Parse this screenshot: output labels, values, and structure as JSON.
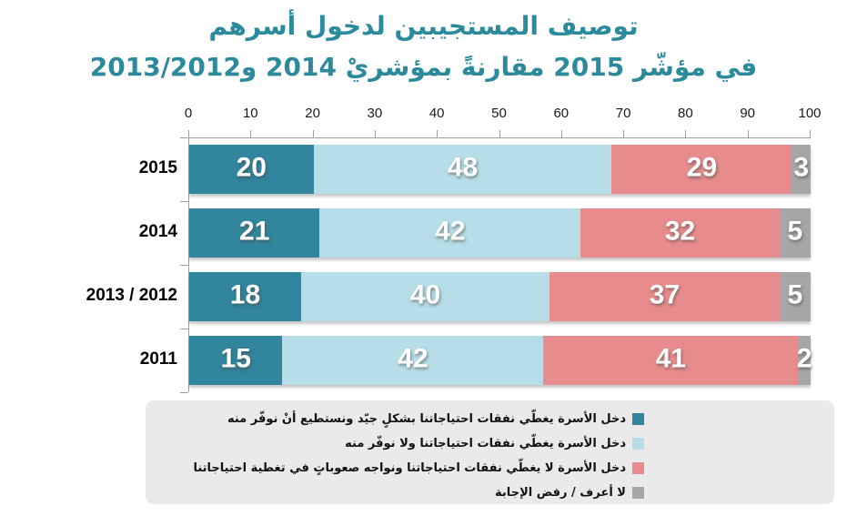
{
  "title": {
    "line1": "توصيف المستجيبين لدخول أسرهم",
    "line2": "في مؤشّر 2015 مقارنةً بمؤشريْ 2014 و2013/2012",
    "color": "#2B8A9B"
  },
  "colors": {
    "axis_line": "#9f9f9f",
    "legend_background": "#EAEAEA",
    "value_label": "#ffffff",
    "background": "#ffffff"
  },
  "chart_data": {
    "type": "bar",
    "orientation": "horizontal",
    "stacked": true,
    "axis_position": "top",
    "legend_position": "bottom",
    "grid": false,
    "xlim": [
      0,
      100
    ],
    "x_ticks": [
      0,
      10,
      20,
      30,
      40,
      50,
      60,
      70,
      80,
      90,
      100
    ],
    "categories": [
      "2015",
      "2014",
      "2013 / 2012",
      "2011"
    ],
    "series": [
      {
        "name": "دخل الأسرة يغطّي نفقات احتياجاتنا بشكلٍ جيّد ونستطيع أنْ نوفّر منه",
        "color": "#31859C",
        "values": [
          20,
          21,
          18,
          15
        ]
      },
      {
        "name": "دخل الأسرة يغطّي نفقات احتياجاتنا ولا نوفّر منه",
        "color": "#B7DEE8",
        "values": [
          48,
          42,
          40,
          42
        ]
      },
      {
        "name": "دخل الأسرة لا يغطّي نفقات احتياجاتنا ونواجه صعوباتٍ في تغطية احتياجاتنا",
        "color": "#E88B8C",
        "values": [
          29,
          32,
          37,
          41
        ]
      },
      {
        "name": "لا أعرف / رفض الإجابة",
        "color": "#A6A6A6",
        "values": [
          3,
          5,
          5,
          2
        ]
      }
    ]
  }
}
